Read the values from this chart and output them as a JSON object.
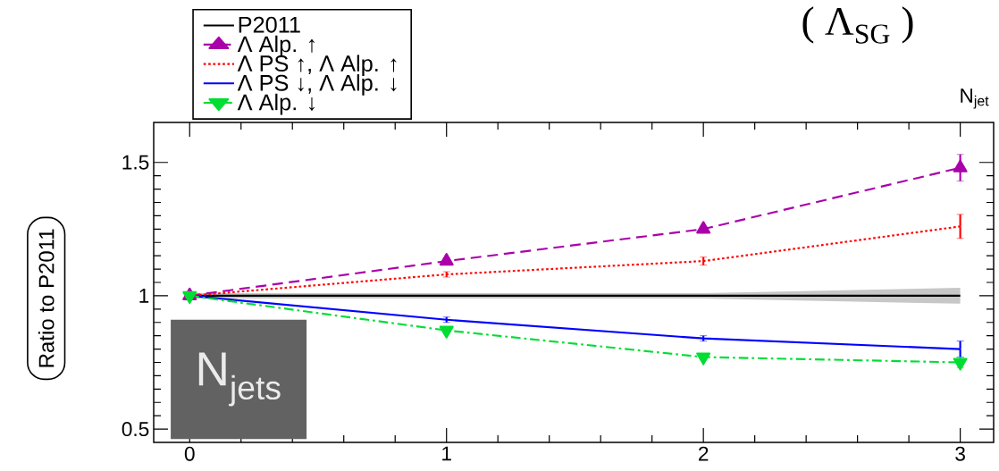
{
  "chart_data": {
    "type": "line",
    "title": "( Λ$_{SG}$ )",
    "xlabel": "N$_{jet}$",
    "ylabel": "Ratio to P2011",
    "x": [
      0,
      1,
      2,
      3
    ],
    "xlim": [
      -0.14,
      3.13
    ],
    "ylim": [
      0.45,
      1.65
    ],
    "xticks": [
      0,
      1,
      2,
      3
    ],
    "yticks": [
      0.5,
      1,
      1.5
    ],
    "legend": "top left",
    "grid": false,
    "annotations": [
      "N$_{jets}$"
    ],
    "series": [
      {
        "name": "P2011",
        "color": "#000000",
        "values": [
          1,
          1,
          1,
          1
        ],
        "line_style": "solid",
        "lower": [
          0.99,
          0.99,
          0.99,
          0.97
        ],
        "upper": [
          1.01,
          1.01,
          1.01,
          1.03
        ]
      },
      {
        "name": "Λ Alp. ↑",
        "color": "#aa00aa",
        "values": [
          1.0,
          1.13,
          1.25,
          1.48
        ],
        "marker": "triangle",
        "line_style": "dashed",
        "errors": [
          null,
          0.01,
          0.01,
          0.05
        ]
      },
      {
        "name": "Λ PS ↑, Λ Alp. ↑",
        "color": "#ff0000",
        "values": [
          1.0,
          1.08,
          1.13,
          1.26
        ],
        "marker": "none",
        "line_style": "dotted",
        "errors": [
          null,
          0.01,
          0.015,
          0.045
        ]
      },
      {
        "name": "Λ PS ↓, Λ Alp. ↓",
        "color": "#0000ff",
        "values": [
          1.0,
          0.91,
          0.84,
          0.8
        ],
        "marker": "none",
        "line_style": "solid",
        "errors": [
          null,
          0.01,
          0.01,
          0.03
        ]
      },
      {
        "name": "Λ Alp. ↓",
        "color": "#00dd33",
        "values": [
          1.0,
          0.87,
          0.77,
          0.75
        ],
        "marker": "triangle down",
        "line_style": "dashdot",
        "errors": [
          null,
          0.01,
          0.01,
          0.02
        ]
      }
    ]
  }
}
